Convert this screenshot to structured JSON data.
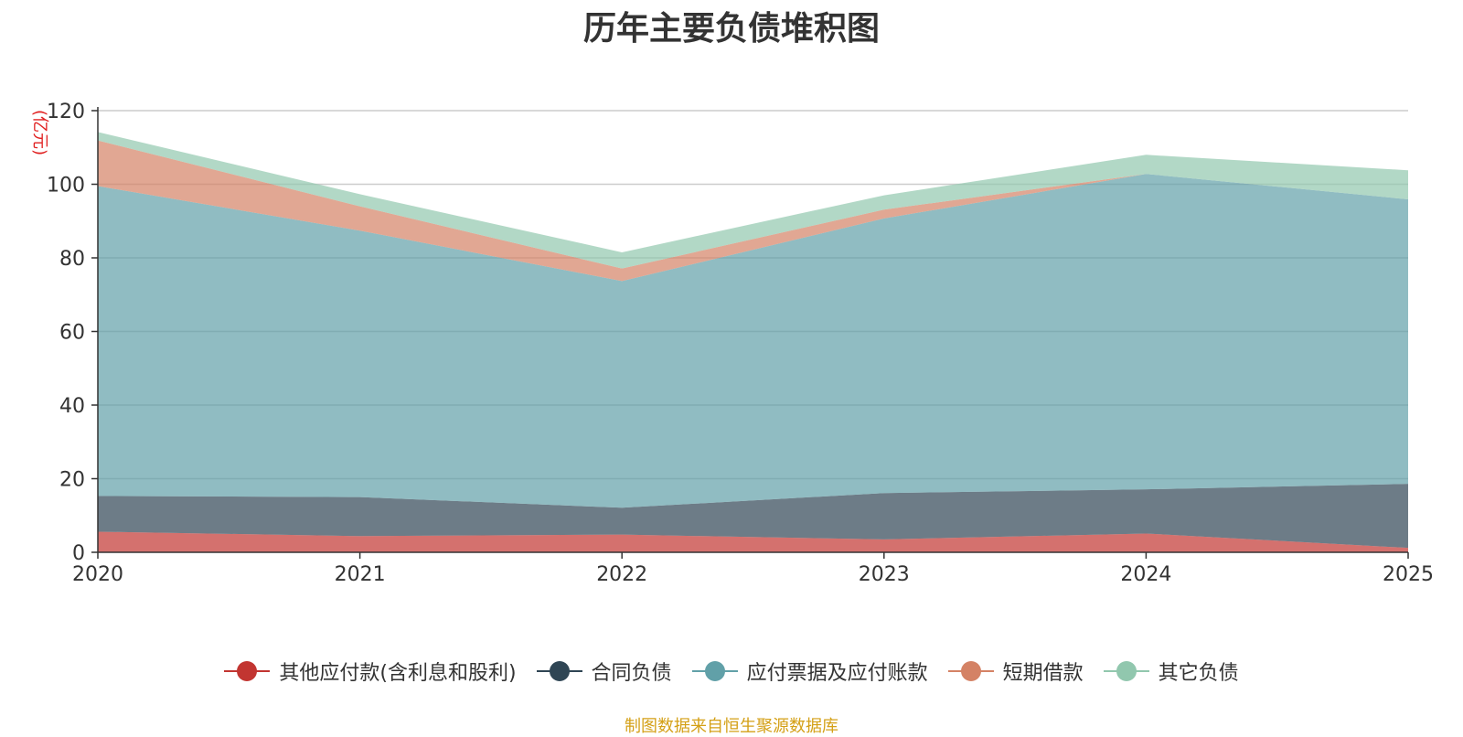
{
  "chart_data": {
    "type": "area",
    "stacked": true,
    "title": "历年主要负债堆积图",
    "unit_label": "(亿元)",
    "x": [
      "2020",
      "2021",
      "2022",
      "2023",
      "2024",
      "2025"
    ],
    "ylim": [
      0,
      120
    ],
    "yticks": [
      0,
      20,
      40,
      60,
      80,
      100,
      120
    ],
    "series": [
      {
        "name": "其他应付款(含利息和股利)",
        "color": "#c23531",
        "values": [
          5.6,
          4.4,
          4.8,
          3.5,
          5.1,
          1.2
        ]
      },
      {
        "name": "合同负债",
        "color": "#2f4554",
        "values": [
          9.7,
          10.6,
          7.3,
          12.6,
          12.0,
          17.4
        ]
      },
      {
        "name": "应付票据及应付账款",
        "color": "#61a0a8",
        "values": [
          84.2,
          72.4,
          61.6,
          74.6,
          85.7,
          77.3
        ]
      },
      {
        "name": "短期借款",
        "color": "#d48265",
        "values": [
          12.4,
          6.6,
          3.4,
          2.4,
          0.0,
          0.0
        ]
      },
      {
        "name": "其它负债",
        "color": "#91c7ae",
        "values": [
          2.3,
          3.3,
          4.4,
          3.9,
          5.2,
          7.9
        ]
      }
    ],
    "grid": true,
    "legend_position": "bottom"
  },
  "source_note": "制图数据来自恒生聚源数据库"
}
